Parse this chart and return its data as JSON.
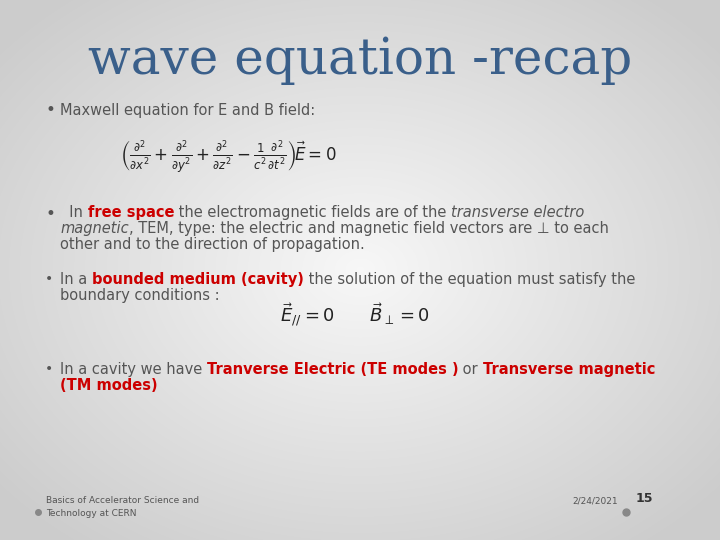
{
  "title": "wave equation -recap",
  "title_color": "#3A5F8A",
  "title_fontsize": 36,
  "bg_color_light": "#F0F0F0",
  "bg_color_dark": "#C8C8C8",
  "bullet1": "Maxwell equation for E and B field:",
  "text_color": "#555555",
  "red_color": "#CC0000",
  "footer_left_line1": "Basics of Accelerator Science and",
  "footer_left_line2": "Technology at CERN",
  "footer_right": "2/24/2021",
  "footer_page": "15",
  "footer_dot_color": "#888888",
  "bullet_color": "#555555",
  "bullet_size": 8,
  "body_fontsize": 10.5,
  "eq1_fontsize": 12,
  "eq2_fontsize": 13
}
